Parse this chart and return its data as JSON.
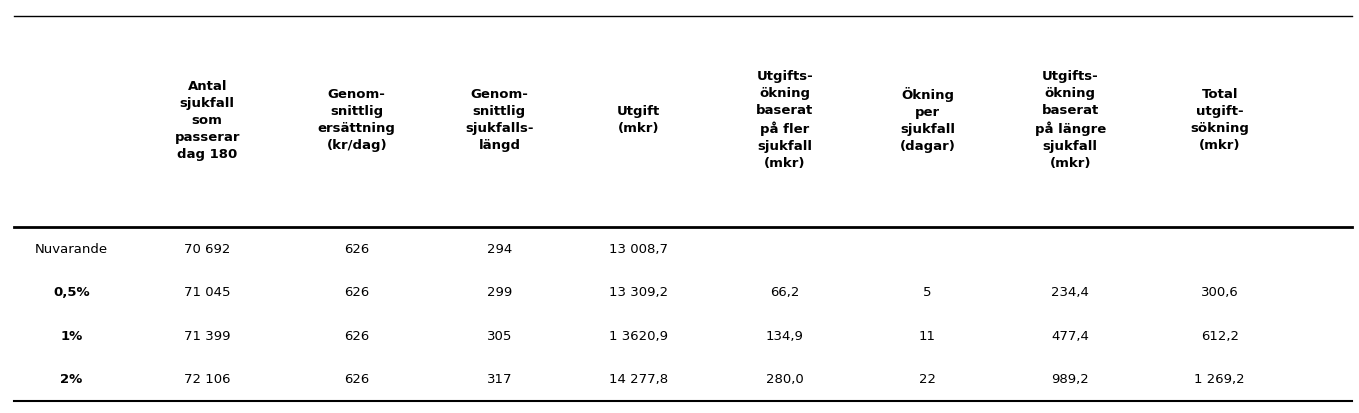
{
  "col_headers": [
    "Antal\nsjukfall\nsom\npasserar\ndag 180",
    "Genom-\nsnittlig\nersättning\n(kr/dag)",
    "Genom-\nsnittlig\nsjukfalls-\nlängd",
    "Utgift\n(mkr)",
    "Utgifts-\nökning\nbaserat\npå fler\nsjukfall\n(mkr)",
    "Ökning\nper\nsjukfall\n(dagar)",
    "Utgifts-\nökning\nbaserat\npå längre\nsjukfall\n(mkr)",
    "Total\nutgift-\nsökning\n(mkr)"
  ],
  "row_labels": [
    "Nuvarande",
    "0,5%",
    "1%",
    "2%"
  ],
  "row_labels_bold": [
    false,
    true,
    true,
    true
  ],
  "table_data": [
    [
      "70 692",
      "626",
      "294",
      "13 008,7",
      "",
      "",
      "",
      ""
    ],
    [
      "71 045",
      "626",
      "299",
      "13 309,2",
      "66,2",
      "5",
      "234,4",
      "300,6"
    ],
    [
      "71 399",
      "626",
      "305",
      "1 3620,9",
      "134,9",
      "11",
      "477,4",
      "612,2"
    ],
    [
      "72 106",
      "626",
      "317",
      "14 277,8",
      "280,0",
      "22",
      "989,2",
      "1 269,2"
    ]
  ],
  "background_color": "#ffffff",
  "header_line_color": "#000000",
  "text_color": "#000000",
  "font_size": 9.5,
  "header_font_size": 9.5
}
